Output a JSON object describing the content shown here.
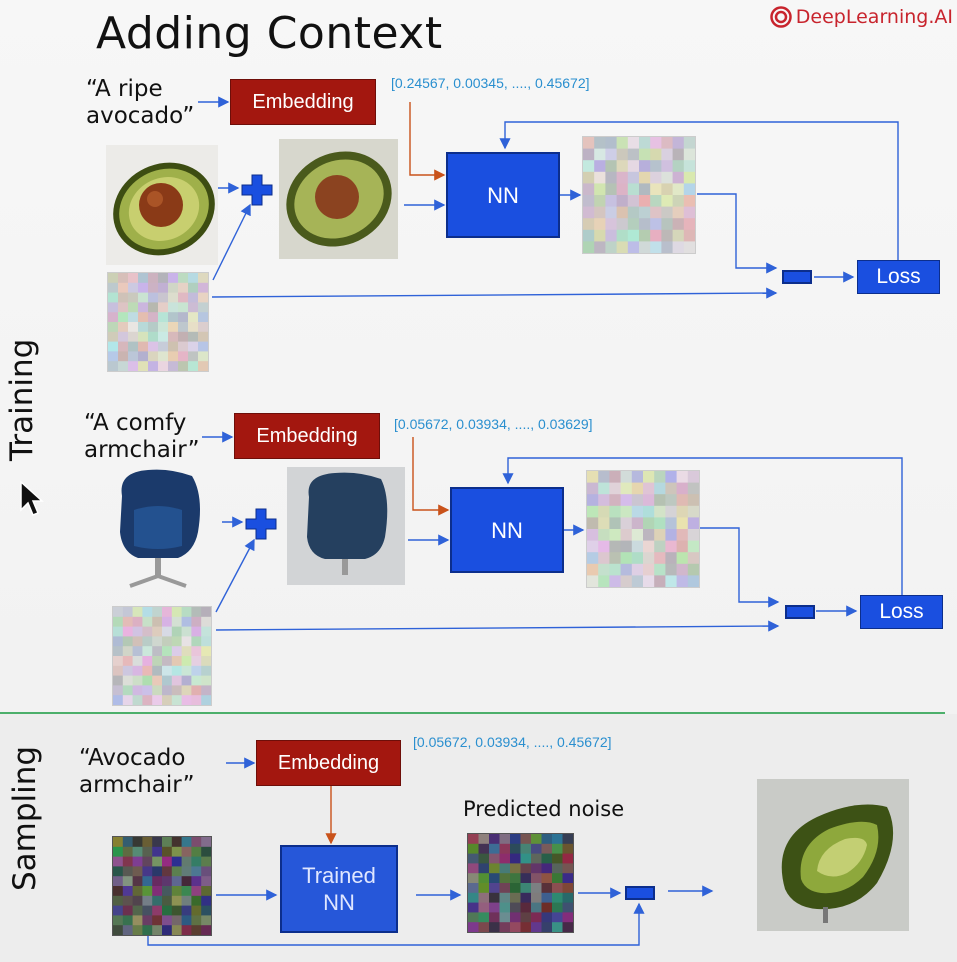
{
  "title": "Adding Context",
  "brand": "DeepLearning.AI",
  "section_training": "Training",
  "section_sampling": "Sampling",
  "row1": {
    "prompt_line1": "“A ripe",
    "prompt_line2": "avocado”",
    "embedding": "Embedding",
    "vector": "[0.24567, 0.00345, ...., 0.45672]",
    "nn": "NN",
    "loss": "Loss"
  },
  "row2": {
    "prompt_line1": "“A comfy",
    "prompt_line2": "armchair”",
    "embedding": "Embedding",
    "vector": "[0.05672, 0.03934, ...., 0.03629]",
    "nn": "NN",
    "loss": "Loss"
  },
  "sampling": {
    "prompt_line1": "“Avocado",
    "prompt_line2": "armchair”",
    "embedding": "Embedding",
    "vector": "[0.05672, 0.03934, ...., 0.45672]",
    "nn_line1": "Trained",
    "nn_line2": "NN",
    "predicted_noise": "Predicted noise"
  },
  "colors": {
    "embedding": "#a3170f",
    "nn": "#1a4fe0",
    "arrow_blue": "#2f62d8",
    "arrow_red": "#c9521a",
    "vector_text": "#2a8fcf",
    "divider": "#4caf6b"
  },
  "icons": [
    "plus-icon",
    "minus-icon",
    "mouse-cursor-icon",
    "deeplearning-logo-icon"
  ]
}
